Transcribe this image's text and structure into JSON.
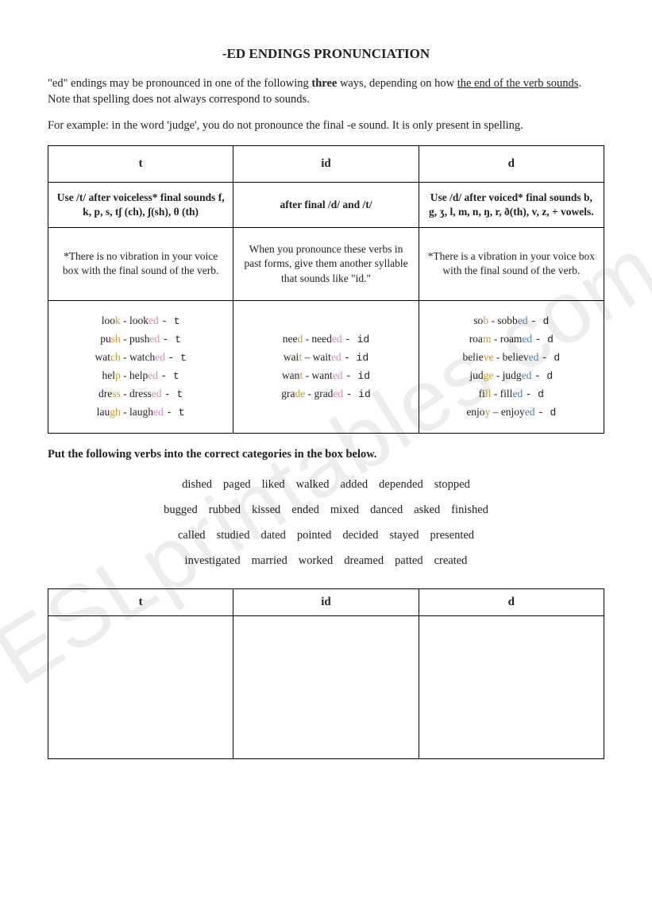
{
  "title": "-ED ENDINGS PRONUNCIATION",
  "intro1_a": "\"ed\" endings may be pronounced in one of the following ",
  "intro1_b": "three",
  "intro1_c": " ways, depending on how ",
  "intro1_d": "the end of the verb sounds",
  "intro1_e": ". Note that spelling does not always correspond to sounds.",
  "intro2": "For example: in the word 'judge', you do not pronounce the final -e sound. It is only present in spelling.",
  "table": {
    "headers": {
      "c1": "t",
      "c2": "id",
      "c3": "d"
    },
    "rules": {
      "c1": "Use /t/ after voiceless* final sounds f, k, p, s, tʃ (ch), ʃ(sh), θ (th)",
      "c2": "after final /d/ and /t/",
      "c3": "Use /d/ after voiced* final sounds b, g, ʒ, l, m, n, ŋ, r, ð(th), v, z, + vowels."
    },
    "notes": {
      "c1": "*There is no vibration in your voice box with the final sound of the verb.",
      "c2": "When you pronounce these verbs in past forms, give them another syllable that sounds like \"id.\"",
      "c3": "*There is a vibration in your voice box with the final sound of the verb."
    },
    "examples": {
      "c1": [
        {
          "pre": "loo",
          "hl": "k",
          "mid": " - look",
          "ed": "ed",
          "ipa": "t"
        },
        {
          "pre": "pu",
          "hl": "sh",
          "mid": " - push",
          "ed": "ed",
          "ipa": "t"
        },
        {
          "pre": "wat",
          "hl": "ch",
          "mid": " - watch",
          "ed": "ed",
          "ipa": "t"
        },
        {
          "pre": "hel",
          "hl": "p",
          "mid": " - help",
          "ed": "ed",
          "ipa": "t"
        },
        {
          "pre": "dre",
          "hl": "ss",
          "mid": " - dress",
          "ed": "ed",
          "ipa": "t"
        },
        {
          "pre": "lau",
          "hl": "gh",
          "mid": " - laugh",
          "ed": "ed",
          "ipa": "t"
        }
      ],
      "c2": [
        {
          "pre": "nee",
          "hl": "d",
          "mid": " - need",
          "ed": "ed",
          "ipa": "id"
        },
        {
          "pre": "wai",
          "hl": "t",
          "mid": " – wait",
          "ed": "ed",
          "ipa": "id"
        },
        {
          "pre": "wan",
          "hl": "t",
          "mid": " - want",
          "ed": "ed",
          "ipa": "id"
        },
        {
          "pre": "gra",
          "hl": "de",
          "mid": " - grad",
          "ed": "ed",
          "ipa": "id"
        }
      ],
      "c3": [
        {
          "pre": "so",
          "hl": "b",
          "mid": " - sobb",
          "ed": "ed",
          "ipa": "d"
        },
        {
          "pre": "roa",
          "hl": "m",
          "mid": " - roam",
          "ed": "ed",
          "ipa": "d"
        },
        {
          "pre": "belie",
          "hl": "ve",
          "mid": " - believ",
          "ed": "ed",
          "ipa": "d"
        },
        {
          "pre": "jud",
          "hl": "ge",
          "mid": " - judg",
          "ed": "ed",
          "ipa": "d"
        },
        {
          "pre": "fi",
          "hl": "ll",
          "mid": " - fill",
          "ed": "ed",
          "ipa": "d"
        },
        {
          "pre": "enjo",
          "hl": "y",
          "mid": " – enjoy",
          "ed": "ed",
          "ipa": "d"
        }
      ]
    }
  },
  "exercise_title": "Put the following verbs into the correct categories in the box below.",
  "word_bank": [
    [
      "dished",
      "paged",
      "liked",
      "walked",
      "added",
      "depended",
      "stopped"
    ],
    [
      "bugged",
      "rubbed",
      "kissed",
      "ended",
      "mixed",
      "danced",
      "asked",
      "finished"
    ],
    [
      "called",
      "studied",
      "dated",
      "pointed",
      "decided",
      "stayed",
      "presented"
    ],
    [
      "investigated",
      "married",
      "worked",
      "dreamed",
      "patted",
      "created"
    ]
  ],
  "answer_headers": {
    "c1": "t",
    "c2": "id",
    "c3": "d"
  },
  "watermark": "ESLprintables.com",
  "colors": {
    "highlight_end": "#c79a2a",
    "highlight_ed_t": "#d18ab8",
    "highlight_ed_d": "#4a7db8",
    "text": "#222222",
    "border": "#000000",
    "watermark": "rgba(0,0,0,0.07)"
  }
}
